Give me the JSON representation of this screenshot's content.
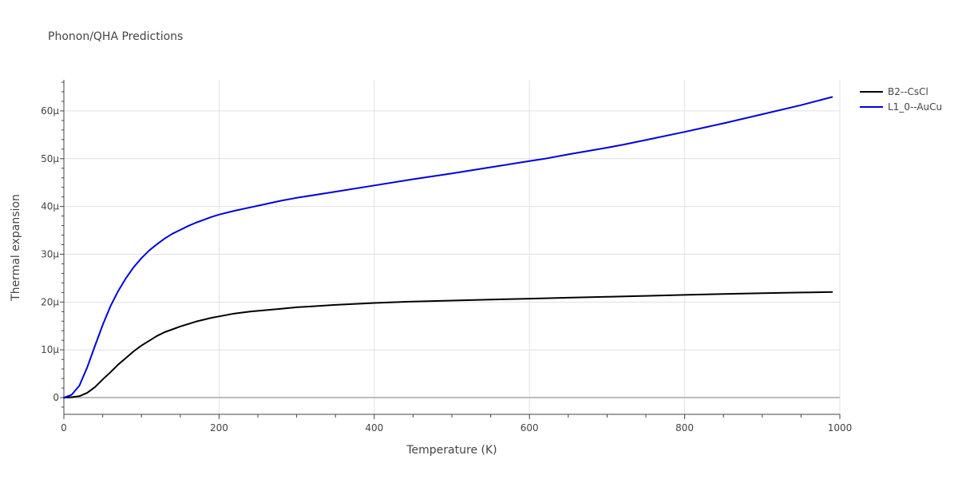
{
  "chart_data": {
    "type": "line",
    "title": "Phonon/QHA Predictions",
    "xlabel": "Temperature (K)",
    "ylabel": "Thermal expansion",
    "xlim": [
      0,
      1000
    ],
    "ylim": [
      -3.5,
      66.5
    ],
    "y_unit_scale": 1e-06,
    "x_ticks": [
      0,
      200,
      400,
      600,
      800,
      1000
    ],
    "x_tick_labels": [
      "0",
      "200",
      "400",
      "600",
      "800",
      "1000"
    ],
    "y_ticks": [
      0,
      10,
      20,
      30,
      40,
      50,
      60
    ],
    "y_tick_labels": [
      "0",
      "10μ",
      "20μ",
      "30μ",
      "40μ",
      "50μ",
      "60μ"
    ],
    "grid": true,
    "legend_position": "top-right",
    "series": [
      {
        "name": "B2--CsCl",
        "color": "#000000",
        "x": [
          0,
          10,
          20,
          30,
          40,
          50,
          60,
          70,
          80,
          90,
          100,
          110,
          120,
          130,
          140,
          150,
          160,
          170,
          180,
          190,
          200,
          220,
          240,
          260,
          280,
          300,
          350,
          400,
          450,
          500,
          550,
          600,
          650,
          700,
          750,
          800,
          850,
          900,
          950,
          990
        ],
        "y": [
          0,
          0.1,
          0.3,
          1.0,
          2.2,
          3.8,
          5.3,
          6.9,
          8.3,
          9.7,
          10.9,
          11.9,
          12.9,
          13.7,
          14.3,
          14.9,
          15.4,
          15.9,
          16.3,
          16.7,
          17.0,
          17.6,
          18.0,
          18.3,
          18.6,
          18.9,
          19.4,
          19.8,
          20.1,
          20.3,
          20.5,
          20.7,
          20.9,
          21.1,
          21.3,
          21.5,
          21.7,
          21.85,
          22.0,
          22.1
        ]
      },
      {
        "name": "L1_0--AuCu",
        "color": "#0000dd",
        "x": [
          0,
          10,
          20,
          30,
          40,
          50,
          60,
          70,
          80,
          90,
          100,
          110,
          120,
          130,
          140,
          150,
          160,
          170,
          180,
          190,
          200,
          220,
          240,
          260,
          280,
          300,
          350,
          400,
          450,
          500,
          550,
          600,
          620,
          650,
          700,
          720,
          750,
          800,
          850,
          900,
          950,
          990
        ],
        "y": [
          0,
          0.6,
          2.5,
          6.3,
          10.8,
          15.2,
          19.1,
          22.3,
          25.0,
          27.3,
          29.2,
          30.8,
          32.1,
          33.3,
          34.3,
          35.1,
          35.9,
          36.6,
          37.2,
          37.8,
          38.3,
          39.1,
          39.8,
          40.5,
          41.2,
          41.8,
          43.1,
          44.4,
          45.7,
          46.9,
          48.2,
          49.5,
          50.0,
          50.9,
          52.3,
          52.9,
          53.9,
          55.6,
          57.4,
          59.3,
          61.2,
          62.9
        ]
      }
    ]
  }
}
